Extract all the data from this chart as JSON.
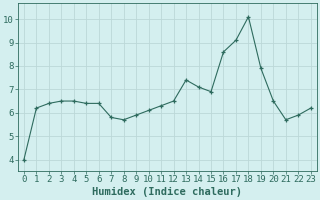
{
  "x": [
    0,
    1,
    2,
    3,
    4,
    5,
    6,
    7,
    8,
    9,
    10,
    11,
    12,
    13,
    14,
    15,
    16,
    17,
    18,
    19,
    20,
    21,
    22,
    23
  ],
  "y": [
    4.0,
    6.2,
    6.4,
    6.5,
    6.5,
    6.4,
    6.4,
    5.8,
    5.7,
    5.9,
    6.1,
    6.3,
    6.5,
    7.4,
    7.1,
    6.9,
    8.6,
    9.1,
    10.1,
    7.9,
    6.5,
    5.7,
    5.9,
    6.2
  ],
  "line_color": "#2e6b5e",
  "bg_color": "#d4efef",
  "grid_color": "#bcd8d8",
  "xlabel": "Humidex (Indice chaleur)",
  "ylim": [
    3.5,
    10.7
  ],
  "xlim": [
    -0.5,
    23.5
  ],
  "yticks": [
    4,
    5,
    6,
    7,
    8,
    9,
    10
  ],
  "xticks": [
    0,
    1,
    2,
    3,
    4,
    5,
    6,
    7,
    8,
    9,
    10,
    11,
    12,
    13,
    14,
    15,
    16,
    17,
    18,
    19,
    20,
    21,
    22,
    23
  ],
  "tick_color": "#2e6b5e",
  "xlabel_fontsize": 7.5,
  "tick_fontsize": 6.5
}
